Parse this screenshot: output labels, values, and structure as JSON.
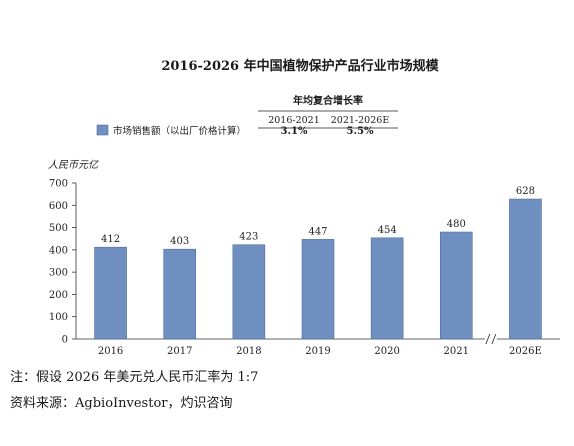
{
  "chart_data": {
    "type": "bar",
    "title": "2016-2026 年中国植物保护产品行业市场规模",
    "ylabel": "人民币元亿",
    "categories": [
      "2016",
      "2017",
      "2018",
      "2019",
      "2020",
      "2021",
      "2026E"
    ],
    "series": [
      {
        "name": "市场销售额（以出厂价格计算）",
        "values": [
          412,
          403,
          423,
          447,
          454,
          480,
          628
        ]
      }
    ],
    "ylim": [
      0,
      700
    ],
    "yticks": [
      0,
      100,
      200,
      300,
      400,
      500,
      600,
      700
    ],
    "bar_color": "#6f8fc1",
    "axis_break_between": [
      "2021",
      "2026E"
    ],
    "grid": false,
    "legend_position": "top-left",
    "cagr_table": {
      "header": "年均复合增长率",
      "periods": [
        "2016-2021",
        "2021-2026E"
      ],
      "values": [
        "3.1%",
        "5.5%"
      ]
    }
  },
  "notes": [
    "注：假设 2026 年美元兑人民币汇率为 1:7",
    "资料来源：AgbioInvestor，灼识咨询"
  ]
}
